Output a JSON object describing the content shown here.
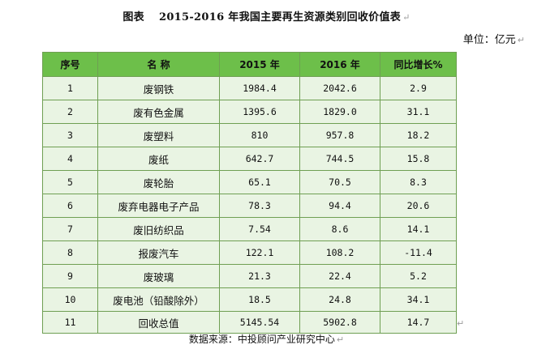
{
  "title": {
    "label": "图表",
    "text": "2015-2016 年我国主要再生资源类别回收价值表",
    "mark": "↵"
  },
  "unit": {
    "text": "单位：亿元",
    "mark": "↵"
  },
  "table": {
    "headers": [
      "序号",
      "名  称",
      "2015 年",
      "2016 年",
      "同比增长%"
    ],
    "rows": [
      [
        "1",
        "废钢铁",
        "1984.4",
        "2042.6",
        "2.9"
      ],
      [
        "2",
        "废有色金属",
        "1395.6",
        "1829.0",
        "31.1"
      ],
      [
        "3",
        "废塑料",
        "810",
        "957.8",
        "18.2"
      ],
      [
        "4",
        "废纸",
        "642.7",
        "744.5",
        "15.8"
      ],
      [
        "5",
        "废轮胎",
        "65.1",
        "70.5",
        "8.3"
      ],
      [
        "6",
        "废弃电器电子产品",
        "78.3",
        "94.4",
        "20.6"
      ],
      [
        "7",
        "废旧纺织品",
        "7.54",
        "8.6",
        "14.1"
      ],
      [
        "8",
        "报废汽车",
        "122.1",
        "108.2",
        "-11.4"
      ],
      [
        "9",
        "废玻璃",
        "21.3",
        "22.4",
        "5.2"
      ],
      [
        "10",
        "废电池（铅酸除外）",
        "18.5",
        "24.8",
        "34.1"
      ],
      [
        "11",
        "回收总值",
        "5145.54",
        "5902.8",
        "14.7"
      ]
    ],
    "end_mark": "↵"
  },
  "source": {
    "text": "数据来源：中投顾问产业研究中心",
    "mark": "↵"
  }
}
